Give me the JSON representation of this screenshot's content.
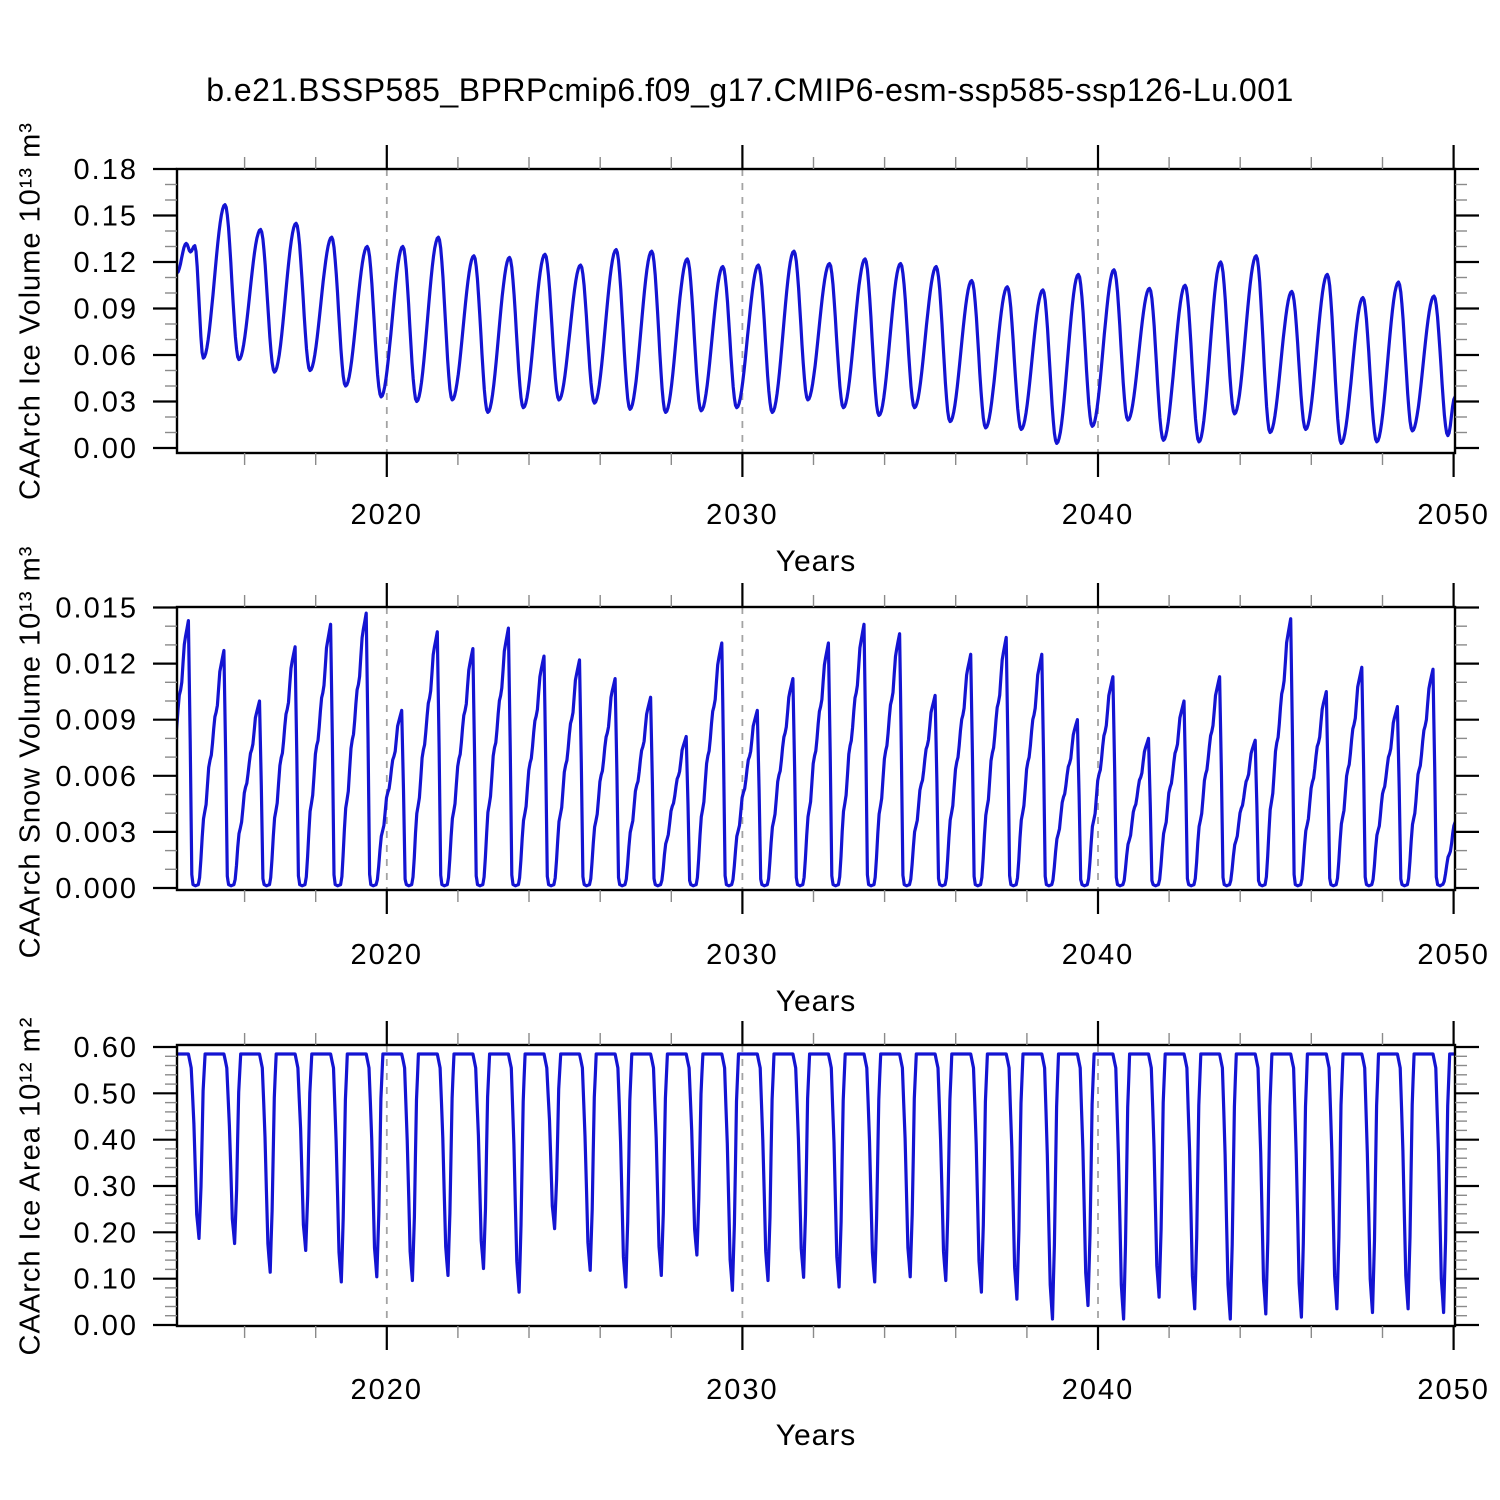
{
  "title": "b.e21.BSSP585_BPRPcmip6.f09_g17.CMIP6-esm-ssp585-ssp126-Lu.001",
  "line_color": "#1414d2",
  "gridline_color": "#a3a3a3",
  "chart_data": [
    {
      "type": "line",
      "panel": "ice_volume",
      "ylabel": "CAArch Ice Volume 10¹³ m³",
      "xlabel": "Years",
      "x_range": [
        2014.1,
        2050.04
      ],
      "y_range": [
        0,
        0.18
      ],
      "x_ticks": {
        "labels": [
          "2020",
          "2030",
          "2040",
          "2050"
        ],
        "values": [
          2020,
          2030,
          2040,
          2050
        ],
        "minor_step": 2
      },
      "y_ticks": {
        "labels": [
          "0.00",
          "0.03",
          "0.06",
          "0.09",
          "0.12",
          "0.15",
          "0.18"
        ],
        "values": [
          0,
          0.03,
          0.06,
          0.09,
          0.12,
          0.15,
          0.18
        ],
        "minor_step": 0.01
      },
      "gridlines_x": [
        2020,
        2030,
        2040
      ],
      "grid": "dashed-vertical-only",
      "legend": "none",
      "seasonal_cycle": {
        "note": "monthly series with annual cycle; spring maxima near year+0.45, autumn minima near year+0.84",
        "years": [
          2014,
          2015,
          2016,
          2017,
          2018,
          2019,
          2020,
          2021,
          2022,
          2023,
          2024,
          2025,
          2026,
          2027,
          2028,
          2029,
          2030,
          2031,
          2032,
          2033,
          2034,
          2035,
          2036,
          2037,
          2038,
          2039,
          2040,
          2041,
          2042,
          2043,
          2044,
          2045,
          2046,
          2047,
          2048,
          2049
        ],
        "spring_max": [
          0.132,
          0.157,
          0.141,
          0.145,
          0.136,
          0.13,
          0.13,
          0.136,
          0.124,
          0.123,
          0.125,
          0.118,
          0.128,
          0.127,
          0.122,
          0.117,
          0.118,
          0.127,
          0.119,
          0.122,
          0.119,
          0.117,
          0.108,
          0.104,
          0.102,
          0.112,
          0.115,
          0.103,
          0.105,
          0.12,
          0.124,
          0.101,
          0.112,
          0.097,
          0.107,
          0.098
        ],
        "autumn_min": [
          0.058,
          0.057,
          0.049,
          0.05,
          0.04,
          0.033,
          0.03,
          0.031,
          0.023,
          0.026,
          0.031,
          0.029,
          0.025,
          0.023,
          0.024,
          0.026,
          0.023,
          0.031,
          0.026,
          0.021,
          0.026,
          0.017,
          0.013,
          0.012,
          0.003,
          0.014,
          0.018,
          0.005,
          0.004,
          0.022,
          0.01,
          0.012,
          0.003,
          0.004,
          0.011,
          0.008
        ],
        "start_point": [
          2014.1,
          0.113
        ],
        "end_point": [
          2050.04,
          0.033
        ]
      }
    },
    {
      "type": "line",
      "panel": "snow_volume",
      "ylabel": "CAArch Snow Volume 10¹³ m³",
      "xlabel": "Years",
      "x_range": [
        2014.1,
        2050.04
      ],
      "y_range": [
        0,
        0.015
      ],
      "x_ticks": {
        "labels": [
          "2020",
          "2030",
          "2040",
          "2050"
        ],
        "values": [
          2020,
          2030,
          2040,
          2050
        ],
        "minor_step": 2
      },
      "y_ticks": {
        "labels": [
          "0.000",
          "0.003",
          "0.006",
          "0.009",
          "0.012",
          "0.015"
        ],
        "values": [
          0,
          0.003,
          0.006,
          0.009,
          0.012,
          0.015
        ],
        "minor_step": 0.001
      },
      "gridlines_x": [
        2020,
        2030,
        2040
      ],
      "grid": "dashed-vertical-only",
      "legend": "none",
      "seasonal_cycle": {
        "note": "annual sawtooth: accumulation from autumn (year-0.3) to spring peak near year+0.42, rapid melt to zero by year+0.55, zero through summer",
        "years": [
          2014,
          2015,
          2016,
          2017,
          2018,
          2019,
          2020,
          2021,
          2022,
          2023,
          2024,
          2025,
          2026,
          2027,
          2028,
          2029,
          2030,
          2031,
          2032,
          2033,
          2034,
          2035,
          2036,
          2037,
          2038,
          2039,
          2040,
          2041,
          2042,
          2043,
          2044,
          2045,
          2046,
          2047,
          2048,
          2049
        ],
        "spring_peak": [
          0.0143,
          0.0127,
          0.01,
          0.0129,
          0.0141,
          0.0147,
          0.0095,
          0.0137,
          0.0128,
          0.0139,
          0.0124,
          0.0122,
          0.0112,
          0.0102,
          0.0081,
          0.0131,
          0.0095,
          0.0112,
          0.0131,
          0.0141,
          0.0136,
          0.0103,
          0.0125,
          0.0134,
          0.0125,
          0.009,
          0.0113,
          0.008,
          0.01,
          0.0113,
          0.0079,
          0.0144,
          0.0105,
          0.0118,
          0.0097,
          0.0117
        ],
        "summer_min": 0.0,
        "start_point": [
          2014.1,
          0.0085
        ],
        "end_point": [
          2050.04,
          0.0035
        ]
      }
    },
    {
      "type": "line",
      "panel": "ice_area",
      "ylabel": "CAArch Ice Area 10¹² m²",
      "xlabel": "Years",
      "x_range": [
        2014.1,
        2050.04
      ],
      "y_range": [
        0,
        0.6
      ],
      "x_ticks": {
        "labels": [
          "2020",
          "2030",
          "2040",
          "2050"
        ],
        "values": [
          2020,
          2030,
          2040,
          2050
        ],
        "minor_step": 2
      },
      "y_ticks": {
        "labels": [
          "0.00",
          "0.10",
          "0.20",
          "0.30",
          "0.40",
          "0.50",
          "0.60"
        ],
        "values": [
          0,
          0.1,
          0.2,
          0.3,
          0.4,
          0.5,
          0.6
        ],
        "minor_step": 0.02
      },
      "gridlines_x": [
        2020,
        2030,
        2040
      ],
      "grid": "dashed-vertical-only",
      "legend": "none",
      "seasonal_cycle": {
        "note": "flat winter maximum with narrow summer dips; minimum near year+0.72",
        "winter_max": 0.585,
        "years": [
          2014,
          2015,
          2016,
          2017,
          2018,
          2019,
          2020,
          2021,
          2022,
          2023,
          2024,
          2025,
          2026,
          2027,
          2028,
          2029,
          2030,
          2031,
          2032,
          2033,
          2034,
          2035,
          2036,
          2037,
          2038,
          2039,
          2040,
          2041,
          2042,
          2043,
          2044,
          2045,
          2046,
          2047,
          2048,
          2049
        ],
        "summer_min": [
          0.187,
          0.176,
          0.114,
          0.161,
          0.093,
          0.104,
          0.096,
          0.107,
          0.122,
          0.071,
          0.208,
          0.118,
          0.082,
          0.107,
          0.151,
          0.075,
          0.096,
          0.103,
          0.082,
          0.093,
          0.104,
          0.096,
          0.071,
          0.056,
          0.013,
          0.042,
          0.013,
          0.06,
          0.035,
          0.013,
          0.024,
          0.017,
          0.035,
          0.027,
          0.035,
          0.027
        ]
      }
    }
  ]
}
